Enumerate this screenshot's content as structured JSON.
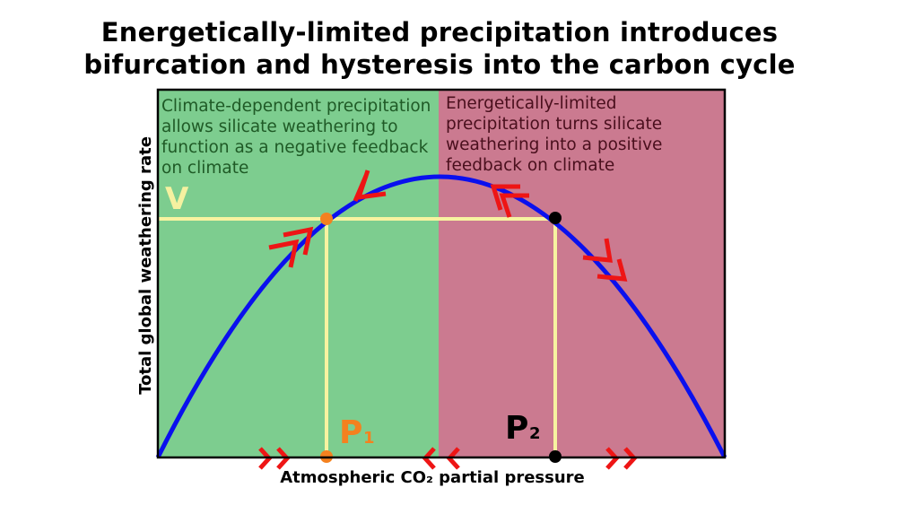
{
  "title": {
    "line1": "Energetically-limited precipitation introduces",
    "line2": "bifurcation and hysteresis into the carbon cycle"
  },
  "regions": {
    "left": {
      "color": "#7dcd8f",
      "lines": [
        "Climate-dependent precipitation",
        "allows silicate weathering to",
        "function as a negative feedback",
        "on climate"
      ],
      "text_color": "#1f5a26"
    },
    "right": {
      "color": "#cb7a90",
      "lines": [
        "Energetically-limited",
        "precipitation turns silicate",
        "weathering into a positive",
        "feedback on climate"
      ],
      "text_color": "#4a0f1d"
    }
  },
  "axes": {
    "xlabel": "Atmospheric CO₂ partial pressure",
    "ylabel": "Total global weathering rate"
  },
  "labels": {
    "v": "V",
    "p1_main": "P",
    "p1_sub": "1",
    "p2_main": "P",
    "p2_sub": "2"
  },
  "colors": {
    "curve": "#0a10ee",
    "guide": "#f7f3a0",
    "v_label": "#f5f1a0",
    "p1": "#f4811f",
    "p2": "#000000",
    "arrows": "#ee1515",
    "frame": "#000000"
  },
  "icons": [
    "double-chevron-arrow-icon"
  ]
}
